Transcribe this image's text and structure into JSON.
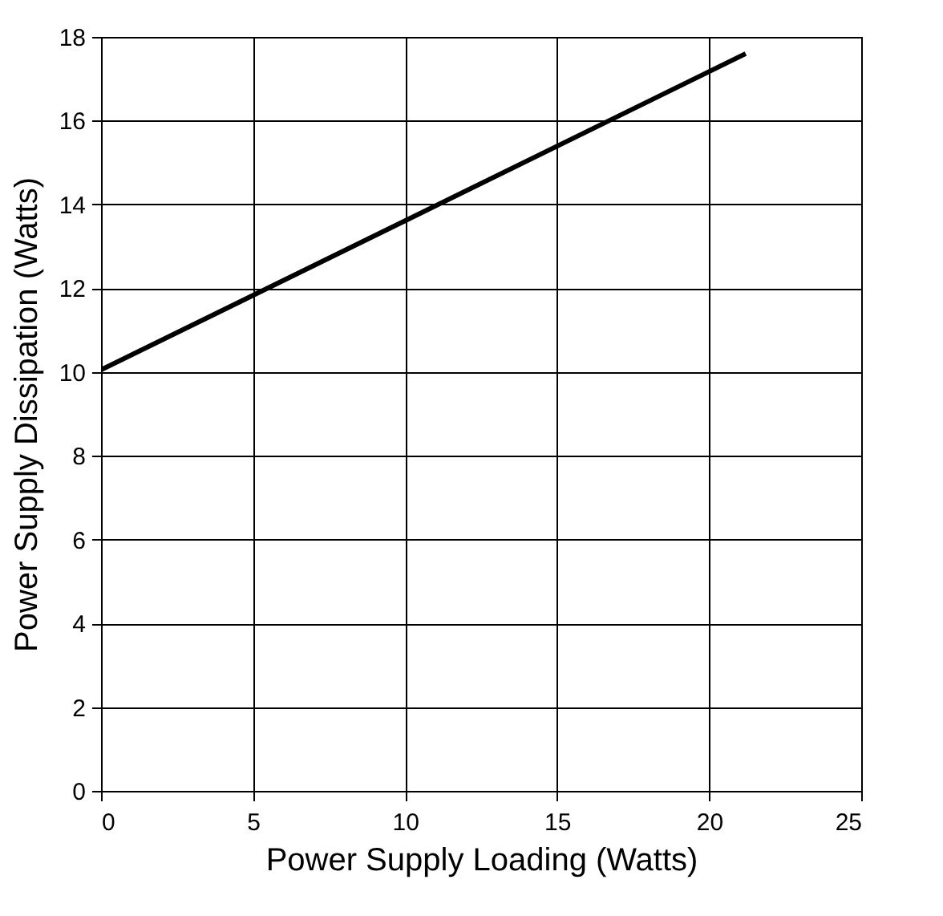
{
  "chart_data": {
    "type": "line",
    "xlabel": "Power Supply Loading (Watts)",
    "ylabel": "Power Supply Dissipation  (Watts)",
    "x": [
      0,
      21.2
    ],
    "series": [
      {
        "color": "#000000",
        "values": [
          10.05,
          17.6
        ]
      }
    ],
    "xlim": [
      0,
      25
    ],
    "xticks": [
      0,
      5,
      10,
      15,
      20,
      25
    ],
    "ylim": [
      0,
      18
    ],
    "yticks": [
      0,
      2,
      4,
      6,
      8,
      10,
      12,
      14,
      16,
      18
    ],
    "grid": true,
    "line_style": "solid",
    "marker": "none"
  }
}
